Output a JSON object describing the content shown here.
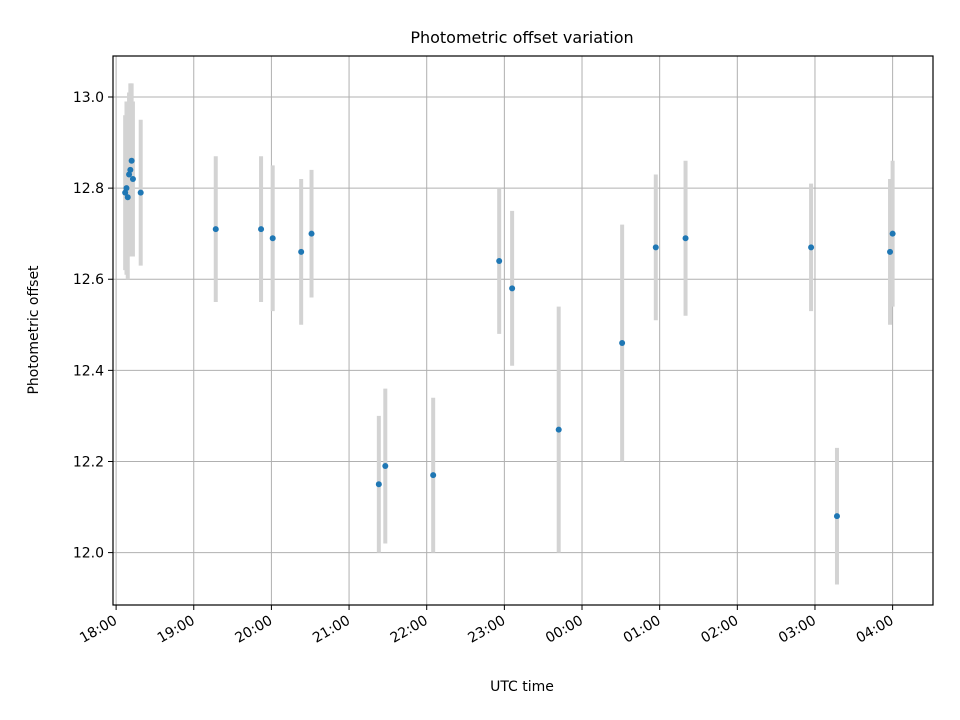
{
  "chart_data": {
    "type": "scatter",
    "title": "Photometric offset variation",
    "xlabel": "UTC time",
    "ylabel": "Photometric offset",
    "x_ticks": [
      "18:00",
      "19:00",
      "20:00",
      "21:00",
      "22:00",
      "23:00",
      "00:00",
      "01:00",
      "02:00",
      "03:00",
      "04:00"
    ],
    "y_ticks": [
      "12.0",
      "12.2",
      "12.4",
      "12.6",
      "12.8",
      "13.0"
    ],
    "x_range_hours": [
      17.96,
      4.52
    ],
    "ylim": [
      11.885,
      13.09
    ],
    "grid": true,
    "colors": {
      "point": "#1f77b4",
      "errorbar": "#d3d3d3",
      "grid": "#b0b0b0"
    },
    "points": [
      {
        "t": "18:07",
        "y": 12.79,
        "err": 0.17
      },
      {
        "t": "18:08",
        "y": 12.8,
        "err": 0.19
      },
      {
        "t": "18:09",
        "y": 12.78,
        "err": 0.18
      },
      {
        "t": "18:10",
        "y": 12.83,
        "err": 0.18
      },
      {
        "t": "18:11",
        "y": 12.84,
        "err": 0.19
      },
      {
        "t": "18:12",
        "y": 12.86,
        "err": 0.17
      },
      {
        "t": "18:13",
        "y": 12.82,
        "err": 0.17
      },
      {
        "t": "18:19",
        "y": 12.79,
        "err": 0.16
      },
      {
        "t": "19:17",
        "y": 12.71,
        "err": 0.16
      },
      {
        "t": "19:52",
        "y": 12.71,
        "err": 0.16
      },
      {
        "t": "20:01",
        "y": 12.69,
        "err": 0.16
      },
      {
        "t": "20:23",
        "y": 12.66,
        "err": 0.16
      },
      {
        "t": "20:31",
        "y": 12.7,
        "err": 0.14
      },
      {
        "t": "21:23",
        "y": 12.15,
        "err": 0.15
      },
      {
        "t": "21:28",
        "y": 12.19,
        "err": 0.17
      },
      {
        "t": "22:05",
        "y": 12.17,
        "err": 0.17
      },
      {
        "t": "22:56",
        "y": 12.64,
        "err": 0.16
      },
      {
        "t": "23:06",
        "y": 12.58,
        "err": 0.17
      },
      {
        "t": "23:42",
        "y": 12.27,
        "err": 0.27
      },
      {
        "t": "00:31",
        "y": 12.46,
        "err": 0.26
      },
      {
        "t": "00:57",
        "y": 12.67,
        "err": 0.16
      },
      {
        "t": "01:20",
        "y": 12.69,
        "err": 0.17
      },
      {
        "t": "02:57",
        "y": 12.67,
        "err": 0.14
      },
      {
        "t": "03:17",
        "y": 12.08,
        "err": 0.15
      },
      {
        "t": "03:58",
        "y": 12.66,
        "err": 0.16
      },
      {
        "t": "04:00",
        "y": 12.7,
        "err": 0.16
      }
    ]
  }
}
